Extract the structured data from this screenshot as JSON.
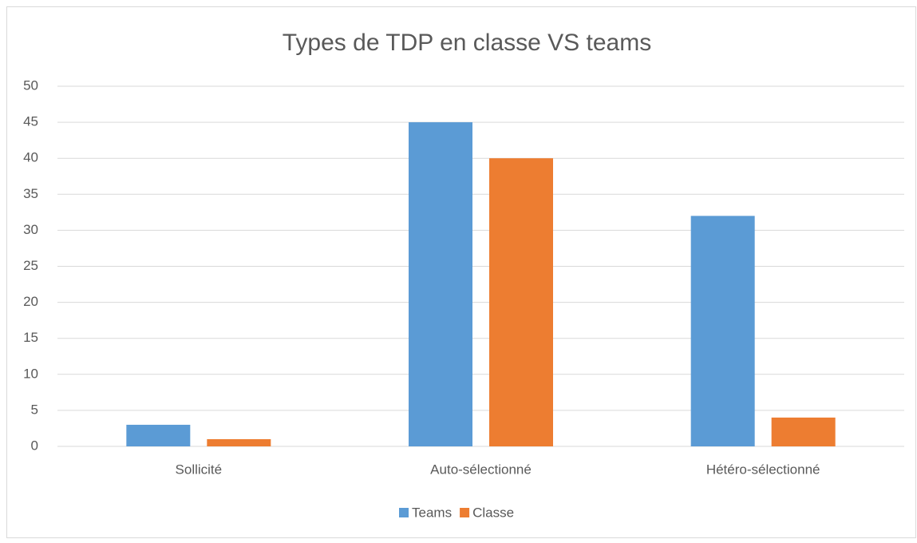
{
  "chart_data": {
    "type": "bar",
    "title": "Types de TDP en classe VS teams",
    "categories": [
      "Sollicité",
      "Auto-sélectionné",
      "Hétéro-sélectionné"
    ],
    "series": [
      {
        "name": "Teams",
        "color": "#5b9bd5",
        "values": [
          3,
          45,
          32
        ]
      },
      {
        "name": "Classe",
        "color": "#ed7d31",
        "values": [
          1,
          40,
          4
        ]
      }
    ],
    "ylim": [
      0,
      50
    ],
    "yticks": [
      0,
      5,
      10,
      15,
      20,
      25,
      30,
      35,
      40,
      45,
      50
    ],
    "grid": true,
    "legend": "bottom"
  }
}
